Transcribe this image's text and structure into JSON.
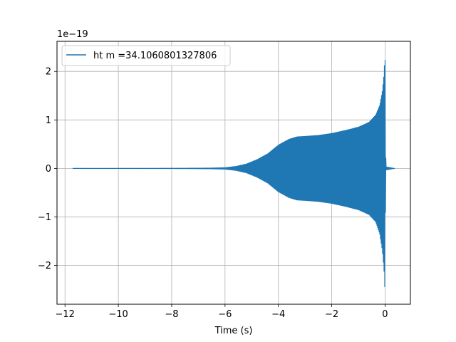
{
  "chart_data": {
    "type": "line",
    "title": "",
    "xlabel": "Time (s)",
    "ylabel": "",
    "y_offset_label": "1e−19",
    "xlim": [
      -12.3,
      0.95
    ],
    "ylim": [
      -2.8,
      2.62
    ],
    "x_ticks": [
      -12,
      -10,
      -8,
      -6,
      -4,
      -2,
      0
    ],
    "x_tick_labels": [
      "−12",
      "−10",
      "−8",
      "−6",
      "−4",
      "−2",
      "0"
    ],
    "y_ticks": [
      -2,
      -1,
      0,
      1,
      2
    ],
    "y_tick_labels": [
      "−2",
      "−1",
      "0",
      "1",
      "2"
    ],
    "grid": true,
    "legend_position": "upper-left",
    "line_color": "#1f77b4",
    "series": [
      {
        "name": "ht m =34.1060801327806",
        "x_start": -11.7,
        "x_end": 0.35,
        "envelope": {
          "t": [
            -11.7,
            -9,
            -7,
            -6.5,
            -6,
            -5.6,
            -5.2,
            -4.8,
            -4.4,
            -4.0,
            -3.6,
            -3.3,
            -3.0,
            -2.5,
            -2.0,
            -1.5,
            -1.0,
            -0.6,
            -0.35,
            -0.2,
            -0.1,
            -0.04,
            0.0,
            0.02,
            0.04,
            0.35
          ],
          "upper": [
            0,
            0.002,
            0.005,
            0.008,
            0.015,
            0.04,
            0.09,
            0.18,
            0.3,
            0.48,
            0.6,
            0.65,
            0.66,
            0.68,
            0.72,
            0.78,
            0.85,
            0.95,
            1.1,
            1.3,
            1.6,
            1.95,
            2.4,
            0.35,
            0.03,
            0.0
          ],
          "lower": [
            0,
            -0.002,
            -0.005,
            -0.008,
            -0.015,
            -0.04,
            -0.09,
            -0.18,
            -0.3,
            -0.48,
            -0.6,
            -0.65,
            -0.66,
            -0.68,
            -0.72,
            -0.78,
            -0.85,
            -0.95,
            -1.1,
            -1.35,
            -1.7,
            -2.1,
            -2.58,
            -0.35,
            -0.03,
            0.0
          ]
        }
      }
    ]
  }
}
